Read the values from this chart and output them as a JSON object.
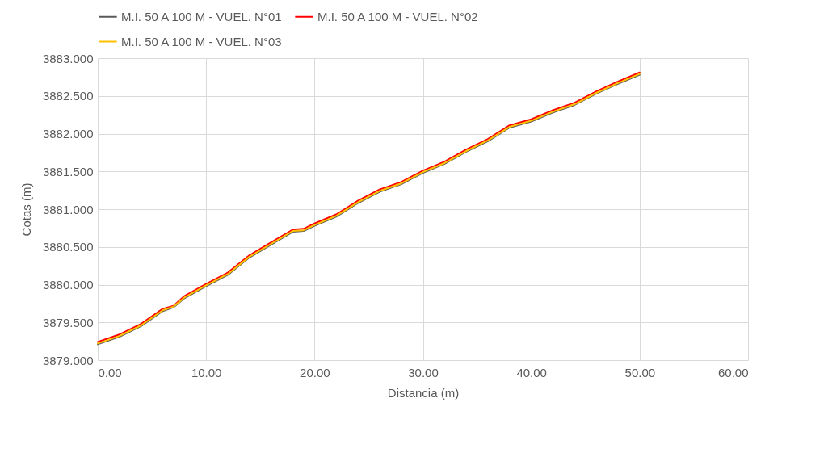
{
  "chart_data": {
    "type": "line",
    "xlabel": "Distancia (m)",
    "ylabel": "Cotas (m)",
    "x": [
      0,
      2,
      4,
      6,
      7,
      8,
      10,
      12,
      14,
      16,
      18,
      19,
      20,
      22,
      24,
      26,
      28,
      30,
      32,
      34,
      36,
      38,
      40,
      42,
      44,
      46,
      48,
      50
    ],
    "series": [
      {
        "name": "M.I. 50 A 100 M - VUEL. N°01",
        "color": "#595959",
        "values": [
          3879.21,
          3879.31,
          3879.45,
          3879.65,
          3879.7,
          3879.82,
          3879.98,
          3880.13,
          3880.36,
          3880.53,
          3880.7,
          3880.71,
          3880.78,
          3880.9,
          3881.08,
          3881.23,
          3881.33,
          3881.48,
          3881.6,
          3881.76,
          3881.9,
          3882.08,
          3882.16,
          3882.28,
          3882.38,
          3882.53,
          3882.66,
          3882.78
        ]
      },
      {
        "name": "M.I. 50 A 100 M - VUEL. N°02",
        "color": "#ff0000",
        "values": [
          3879.24,
          3879.34,
          3879.48,
          3879.68,
          3879.72,
          3879.85,
          3880.01,
          3880.16,
          3880.39,
          3880.56,
          3880.73,
          3880.74,
          3880.81,
          3880.93,
          3881.11,
          3881.26,
          3881.36,
          3881.51,
          3881.63,
          3881.79,
          3881.93,
          3882.11,
          3882.19,
          3882.31,
          3882.41,
          3882.56,
          3882.69,
          3882.81
        ]
      },
      {
        "name": "M.I. 50 A 100 M - VUEL. N°03",
        "color": "#ffc000",
        "values": [
          3879.22,
          3879.32,
          3879.46,
          3879.66,
          3879.71,
          3879.83,
          3879.99,
          3880.14,
          3880.37,
          3880.54,
          3880.71,
          3880.72,
          3880.79,
          3880.91,
          3881.09,
          3881.24,
          3881.34,
          3881.49,
          3881.61,
          3881.77,
          3881.91,
          3882.09,
          3882.17,
          3882.29,
          3882.39,
          3882.54,
          3882.67,
          3882.79
        ]
      }
    ],
    "xlim": [
      0,
      60
    ],
    "xticks": [
      {
        "value": 0,
        "label": "0.00"
      },
      {
        "value": 10,
        "label": "10.00"
      },
      {
        "value": 20,
        "label": "20.00"
      },
      {
        "value": 30,
        "label": "30.00"
      },
      {
        "value": 40,
        "label": "40.00"
      },
      {
        "value": 50,
        "label": "50.00"
      },
      {
        "value": 60,
        "label": "60.00"
      }
    ],
    "ylim": [
      3879,
      3883
    ],
    "yticks": [
      {
        "value": 3879,
        "label": "3879.000"
      },
      {
        "value": 3879.5,
        "label": "3879.500"
      },
      {
        "value": 3880,
        "label": "3880.000"
      },
      {
        "value": 3880.5,
        "label": "3880.500"
      },
      {
        "value": 3881,
        "label": "3881.000"
      },
      {
        "value": 3881.5,
        "label": "3881.500"
      },
      {
        "value": 3882,
        "label": "3882.000"
      },
      {
        "value": 3882.5,
        "label": "3882.500"
      },
      {
        "value": 3883,
        "label": "3883.000"
      }
    ],
    "grid": true,
    "legend": "top",
    "line_style": "solid",
    "marker": "none"
  }
}
